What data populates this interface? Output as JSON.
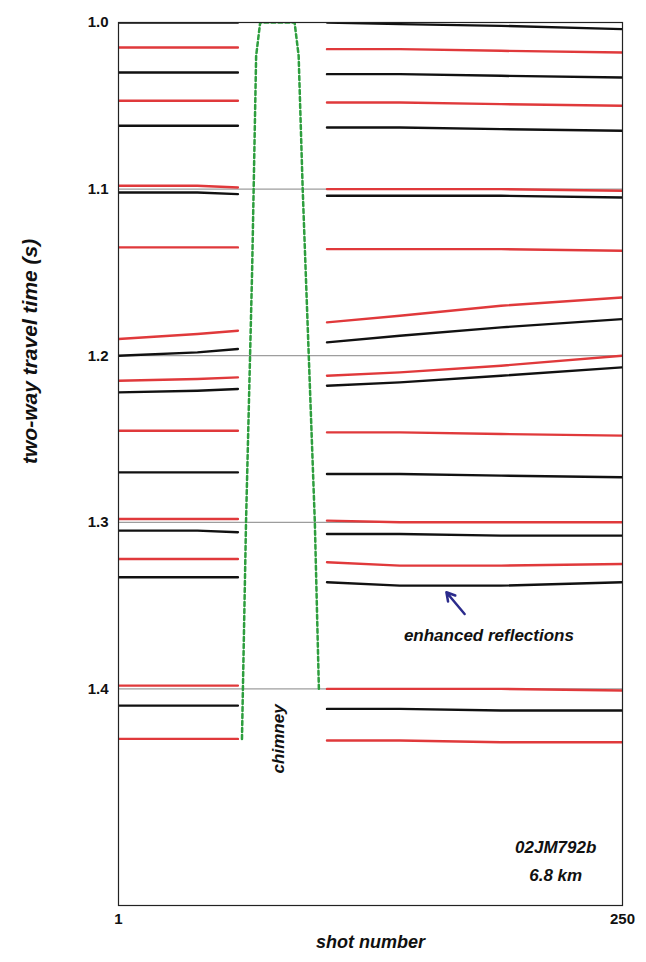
{
  "chart_data": {
    "type": "line",
    "xlabel": "shot number",
    "ylabel": "two-way travel time (s)",
    "xlim": [
      1,
      250
    ],
    "xticks": [
      1,
      250
    ],
    "ylim": [
      1.0,
      1.53
    ],
    "yticks": [
      {
        "value": 1.0,
        "label": "1.0"
      },
      1.1,
      1.2,
      1.3,
      1.4
    ],
    "grid": true,
    "x": [
      1,
      40,
      60,
      80,
      104,
      140,
      190,
      250
    ],
    "series": [
      {
        "color": "#111111",
        "values": [
          1.0,
          1.0,
          1.0,
          null,
          1.0,
          1.001,
          1.002,
          1.004
        ]
      },
      {
        "color": "#e0393b",
        "values": [
          1.015,
          1.015,
          1.015,
          null,
          1.016,
          1.016,
          1.017,
          1.018
        ]
      },
      {
        "color": "#111111",
        "values": [
          1.03,
          1.03,
          1.03,
          null,
          1.031,
          1.031,
          1.032,
          1.033
        ]
      },
      {
        "color": "#e0393b",
        "values": [
          1.047,
          1.047,
          1.047,
          null,
          1.048,
          1.048,
          1.049,
          1.05
        ]
      },
      {
        "color": "#111111",
        "values": [
          1.062,
          1.062,
          1.062,
          null,
          1.063,
          1.063,
          1.064,
          1.065
        ]
      },
      {
        "color": "#e0393b",
        "values": [
          1.098,
          1.098,
          1.099,
          null,
          1.1,
          1.1,
          1.1,
          1.101
        ]
      },
      {
        "color": "#111111",
        "values": [
          1.102,
          1.102,
          1.103,
          null,
          1.104,
          1.104,
          1.104,
          1.105
        ]
      },
      {
        "color": "#e0393b",
        "values": [
          1.135,
          1.135,
          1.135,
          null,
          1.136,
          1.136,
          1.136,
          1.137
        ]
      },
      {
        "color": "#e0393b",
        "values": [
          1.19,
          1.187,
          1.185,
          null,
          1.18,
          1.176,
          1.17,
          1.165
        ]
      },
      {
        "color": "#111111",
        "values": [
          1.2,
          1.198,
          1.196,
          null,
          1.192,
          1.188,
          1.183,
          1.178
        ]
      },
      {
        "color": "#e0393b",
        "values": [
          1.215,
          1.214,
          1.213,
          null,
          1.212,
          1.21,
          1.206,
          1.2
        ]
      },
      {
        "color": "#111111",
        "values": [
          1.222,
          1.221,
          1.22,
          null,
          1.218,
          1.216,
          1.212,
          1.207
        ]
      },
      {
        "color": "#e0393b",
        "values": [
          1.245,
          1.245,
          1.245,
          null,
          1.246,
          1.246,
          1.247,
          1.248
        ]
      },
      {
        "color": "#111111",
        "values": [
          1.27,
          1.27,
          1.27,
          null,
          1.271,
          1.271,
          1.272,
          1.273
        ]
      },
      {
        "color": "#e0393b",
        "values": [
          1.298,
          1.298,
          1.298,
          null,
          1.299,
          1.3,
          1.3,
          1.3
        ]
      },
      {
        "color": "#111111",
        "values": [
          1.305,
          1.305,
          1.306,
          null,
          1.307,
          1.307,
          1.308,
          1.308
        ]
      },
      {
        "color": "#e0393b",
        "values": [
          1.322,
          1.322,
          1.322,
          null,
          1.324,
          1.326,
          1.326,
          1.325
        ]
      },
      {
        "color": "#111111",
        "values": [
          1.333,
          1.333,
          1.333,
          null,
          1.336,
          1.338,
          1.338,
          1.336
        ]
      },
      {
        "color": "#e0393b",
        "values": [
          1.398,
          1.398,
          1.398,
          null,
          1.4,
          1.4,
          1.4,
          1.401
        ]
      },
      {
        "color": "#111111",
        "values": [
          1.41,
          1.41,
          1.41,
          null,
          1.412,
          1.412,
          1.413,
          1.413
        ]
      },
      {
        "color": "#e0393b",
        "values": [
          1.43,
          1.43,
          1.43,
          null,
          1.431,
          1.431,
          1.432,
          1.432
        ]
      },
      {
        "color": "#2e9e3e",
        "line_style": "dashed",
        "x": [
          62,
          64,
          67,
          69,
          71,
          88,
          90,
          92,
          95,
          98,
          100
        ],
        "values": [
          1.43,
          1.3,
          1.15,
          1.02,
          1.0,
          1.0,
          1.02,
          1.1,
          1.2,
          1.3,
          1.4
        ]
      }
    ],
    "annotations": [
      {
        "text": "chimney",
        "x": 80,
        "y": 1.43,
        "orientation": "vertical"
      },
      {
        "text": "enhanced reflections",
        "x": 184,
        "y": 1.368,
        "arrow_from": [
          172,
          1.355
        ],
        "arrow_to": [
          163,
          1.342
        ],
        "color": "#2b2b8c"
      },
      {
        "text": "02JM792b",
        "x": 217,
        "y": 1.495
      },
      {
        "text": "6.8 km",
        "x": 217,
        "y": 1.512
      }
    ]
  }
}
